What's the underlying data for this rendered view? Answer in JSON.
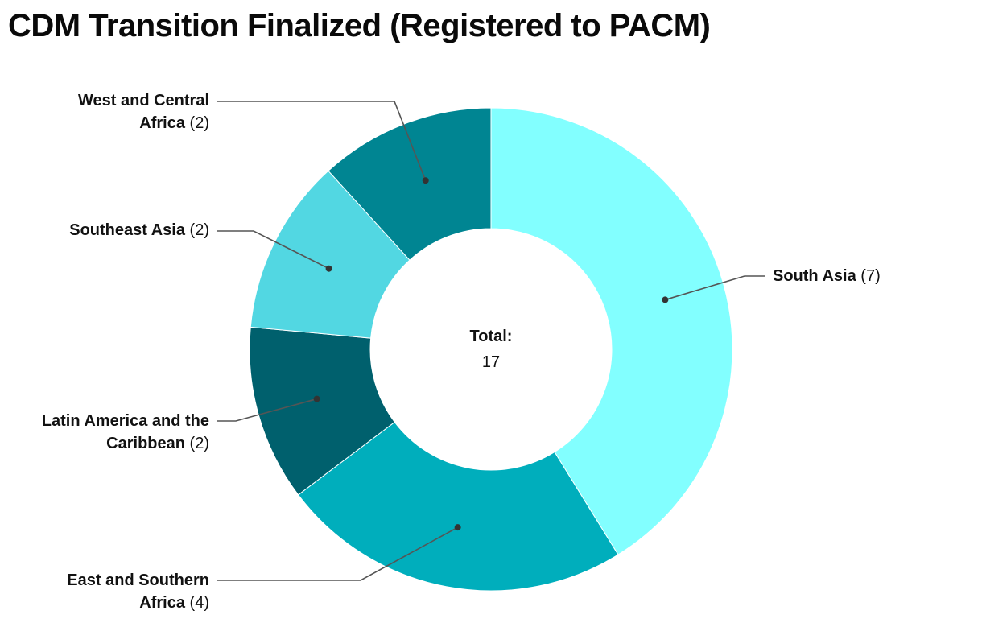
{
  "title": "CDM Transition Finalized (Registered to PACM)",
  "center": {
    "label": "Total:",
    "value": "17"
  },
  "slices": [
    {
      "name": "South Asia",
      "count": "(7)",
      "value": 7,
      "color": "#82FFFF"
    },
    {
      "name": "East and Southern Africa",
      "line1": "East and Southern",
      "line2": "Africa",
      "count": "(4)",
      "value": 4,
      "color": "#00AEBC"
    },
    {
      "name": "Latin America and the Caribbean",
      "line1": "Latin America and the",
      "line2": "Caribbean",
      "count": "(2)",
      "value": 2,
      "color": "#00606D"
    },
    {
      "name": "Southeast Asia",
      "count": "(2)",
      "value": 2,
      "color": "#52D7E2"
    },
    {
      "name": "West and Central Africa",
      "line1": "West and Central",
      "line2": "Africa",
      "count": "(2)",
      "value": 2,
      "color": "#008592"
    }
  ],
  "chart_data": {
    "type": "pie",
    "subtype": "donut",
    "title": "CDM Transition Finalized (Registered to PACM)",
    "categories": [
      "South Asia",
      "East and Southern Africa",
      "Latin America and the Caribbean",
      "Southeast Asia",
      "West and Central Africa"
    ],
    "values": [
      7,
      4,
      2,
      2,
      2
    ],
    "colors": [
      "#82FFFF",
      "#00AEBC",
      "#00606D",
      "#52D7E2",
      "#008592"
    ],
    "total": 17,
    "center_text": "Total: 17",
    "legend": "none (callout labels with leader lines)"
  }
}
